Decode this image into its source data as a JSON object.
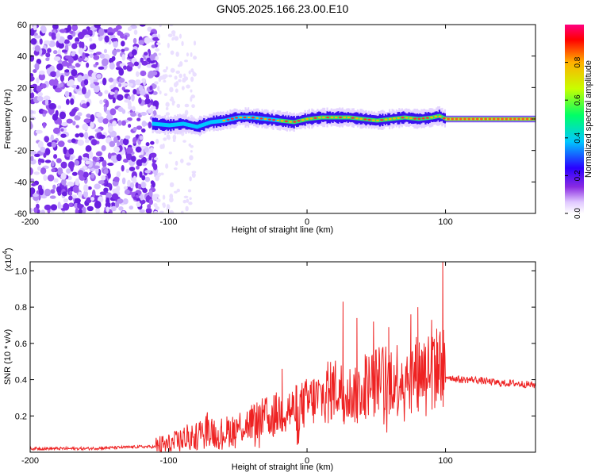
{
  "title": "GN05.2025.166.23.00.E10",
  "chart_data": [
    {
      "type": "heatmap",
      "xlabel": "Height of straight line (km)",
      "ylabel": "Frequency (Hz)",
      "xlim": [
        -200,
        165
      ],
      "ylim": [
        -60,
        60
      ],
      "xticks": [
        -200,
        -100,
        0,
        100
      ],
      "yticks": [
        -60,
        -40,
        -20,
        0,
        20,
        40,
        60
      ],
      "grid": false,
      "colorbar": {
        "label": "Normalized spectral amplitude",
        "range": [
          0,
          1
        ],
        "ticks": [
          "0.0",
          "0.2",
          "0.4",
          "0.6",
          "0.8"
        ],
        "colors": [
          "#ffffff",
          "#e0c8ff",
          "#8a2be2",
          "#2a00ff",
          "#00c8ff",
          "#00ff66",
          "#c8ff00",
          "#ffb000",
          "#ff0000",
          "#ff0080"
        ]
      },
      "ridge": {
        "x": [
          -112,
          -100,
          -90,
          -80,
          -70,
          -60,
          -50,
          -40,
          -30,
          -20,
          -10,
          0,
          10,
          20,
          30,
          40,
          50,
          60,
          70,
          80,
          90,
          95,
          100,
          120,
          140,
          165
        ],
        "frequency": [
          -3,
          -4,
          -3,
          -5,
          -2,
          -1,
          1,
          1,
          0,
          -1,
          -2,
          0,
          1,
          1,
          1,
          0,
          -1,
          0,
          1,
          0,
          1,
          2,
          0,
          0,
          0,
          0
        ]
      }
    },
    {
      "type": "line",
      "xlabel": "Height of straight line (km)",
      "ylabel": "SNR (10 * v/v)",
      "y_multiplier": "(x10",
      "y_multiplier_exp": "4",
      "y_multiplier_close": ")",
      "xlim": [
        -200,
        165
      ],
      "ylim": [
        0,
        1.05
      ],
      "xticks": [
        -200,
        -100,
        0,
        100
      ],
      "yticks": [
        "0.2",
        "0.4",
        "0.6",
        "0.8",
        "1.0"
      ],
      "grid": false,
      "color": "#ee2222",
      "series": [
        {
          "x": [
            -200,
            -180,
            -160,
            -140,
            -120,
            -110,
            -100,
            -95,
            -90,
            -85,
            -80,
            -75,
            -70,
            -65,
            -60,
            -55,
            -50,
            -45,
            -40,
            -35,
            -30,
            -25,
            -20,
            -15,
            -10,
            -5,
            0,
            5,
            10,
            15,
            20,
            25,
            30,
            35,
            40,
            45,
            50,
            55,
            60,
            65,
            70,
            75,
            80,
            85,
            90,
            95,
            98,
            100,
            105,
            110,
            120,
            130,
            140,
            150,
            165
          ],
          "values": [
            0.02,
            0.02,
            0.02,
            0.025,
            0.03,
            0.03,
            0.04,
            0.05,
            0.07,
            0.08,
            0.09,
            0.12,
            0.13,
            0.1,
            0.11,
            0.12,
            0.14,
            0.15,
            0.16,
            0.18,
            0.19,
            0.2,
            0.22,
            0.24,
            0.23,
            0.25,
            0.27,
            0.29,
            0.3,
            0.32,
            0.36,
            0.34,
            0.33,
            0.31,
            0.36,
            0.38,
            0.4,
            0.41,
            0.42,
            0.4,
            0.44,
            0.43,
            0.45,
            0.46,
            0.47,
            0.48,
            0.5,
            0.42,
            0.41,
            0.4,
            0.4,
            0.39,
            0.38,
            0.38,
            0.37
          ]
        }
      ],
      "peaks": [
        {
          "x": -72,
          "y": 0.22
        },
        {
          "x": -40,
          "y": 0.26
        },
        {
          "x": -18,
          "y": 0.46
        },
        {
          "x": -8,
          "y": 0.37
        },
        {
          "x": 15,
          "y": 0.5
        },
        {
          "x": 26,
          "y": 0.83
        },
        {
          "x": 36,
          "y": 0.74
        },
        {
          "x": 42,
          "y": 0.54
        },
        {
          "x": 48,
          "y": 0.72
        },
        {
          "x": 59,
          "y": 0.69
        },
        {
          "x": 65,
          "y": 0.59
        },
        {
          "x": 75,
          "y": 0.76
        },
        {
          "x": 80,
          "y": 0.8
        },
        {
          "x": 90,
          "y": 0.73
        },
        {
          "x": 98,
          "y": 1.05
        }
      ]
    }
  ]
}
